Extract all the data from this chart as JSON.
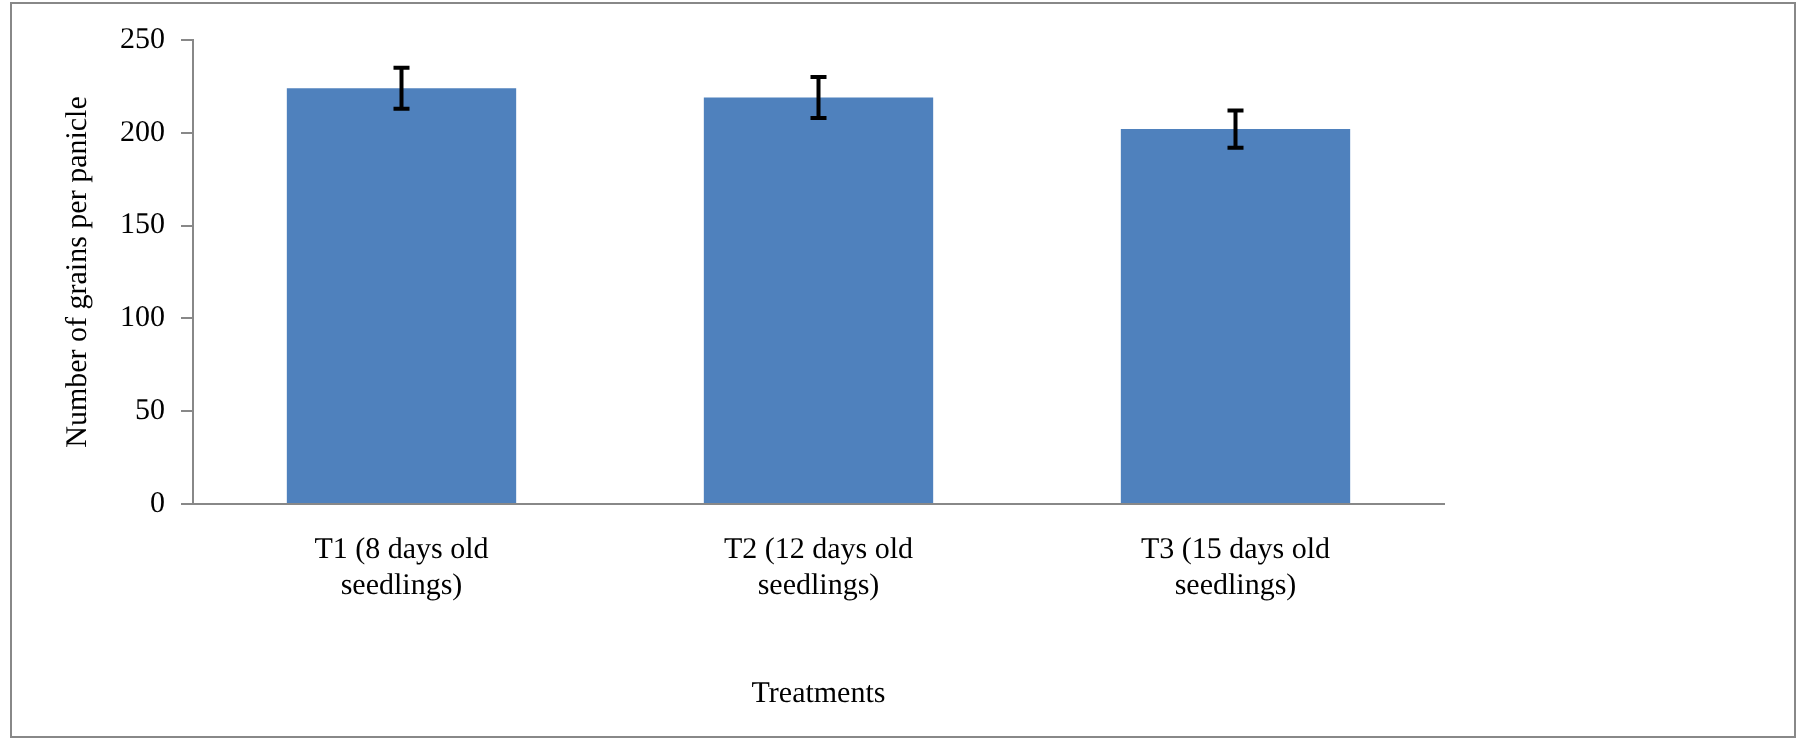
{
  "chart_data": {
    "type": "bar",
    "xlabel": "Treatments",
    "ylabel": "Number of grains per panicle",
    "categories": [
      "T1 (8 days old seedlings)",
      "T2 (12 days old seedlings)",
      "T3 (15 days old seedlings)"
    ],
    "values": [
      224,
      219,
      202
    ],
    "errors": [
      11,
      11,
      10
    ],
    "color": "#4f81bd",
    "ylim": [
      0,
      250
    ],
    "yticks": [
      0,
      50,
      100,
      150,
      200,
      250
    ],
    "grid": false,
    "legend": false
  }
}
